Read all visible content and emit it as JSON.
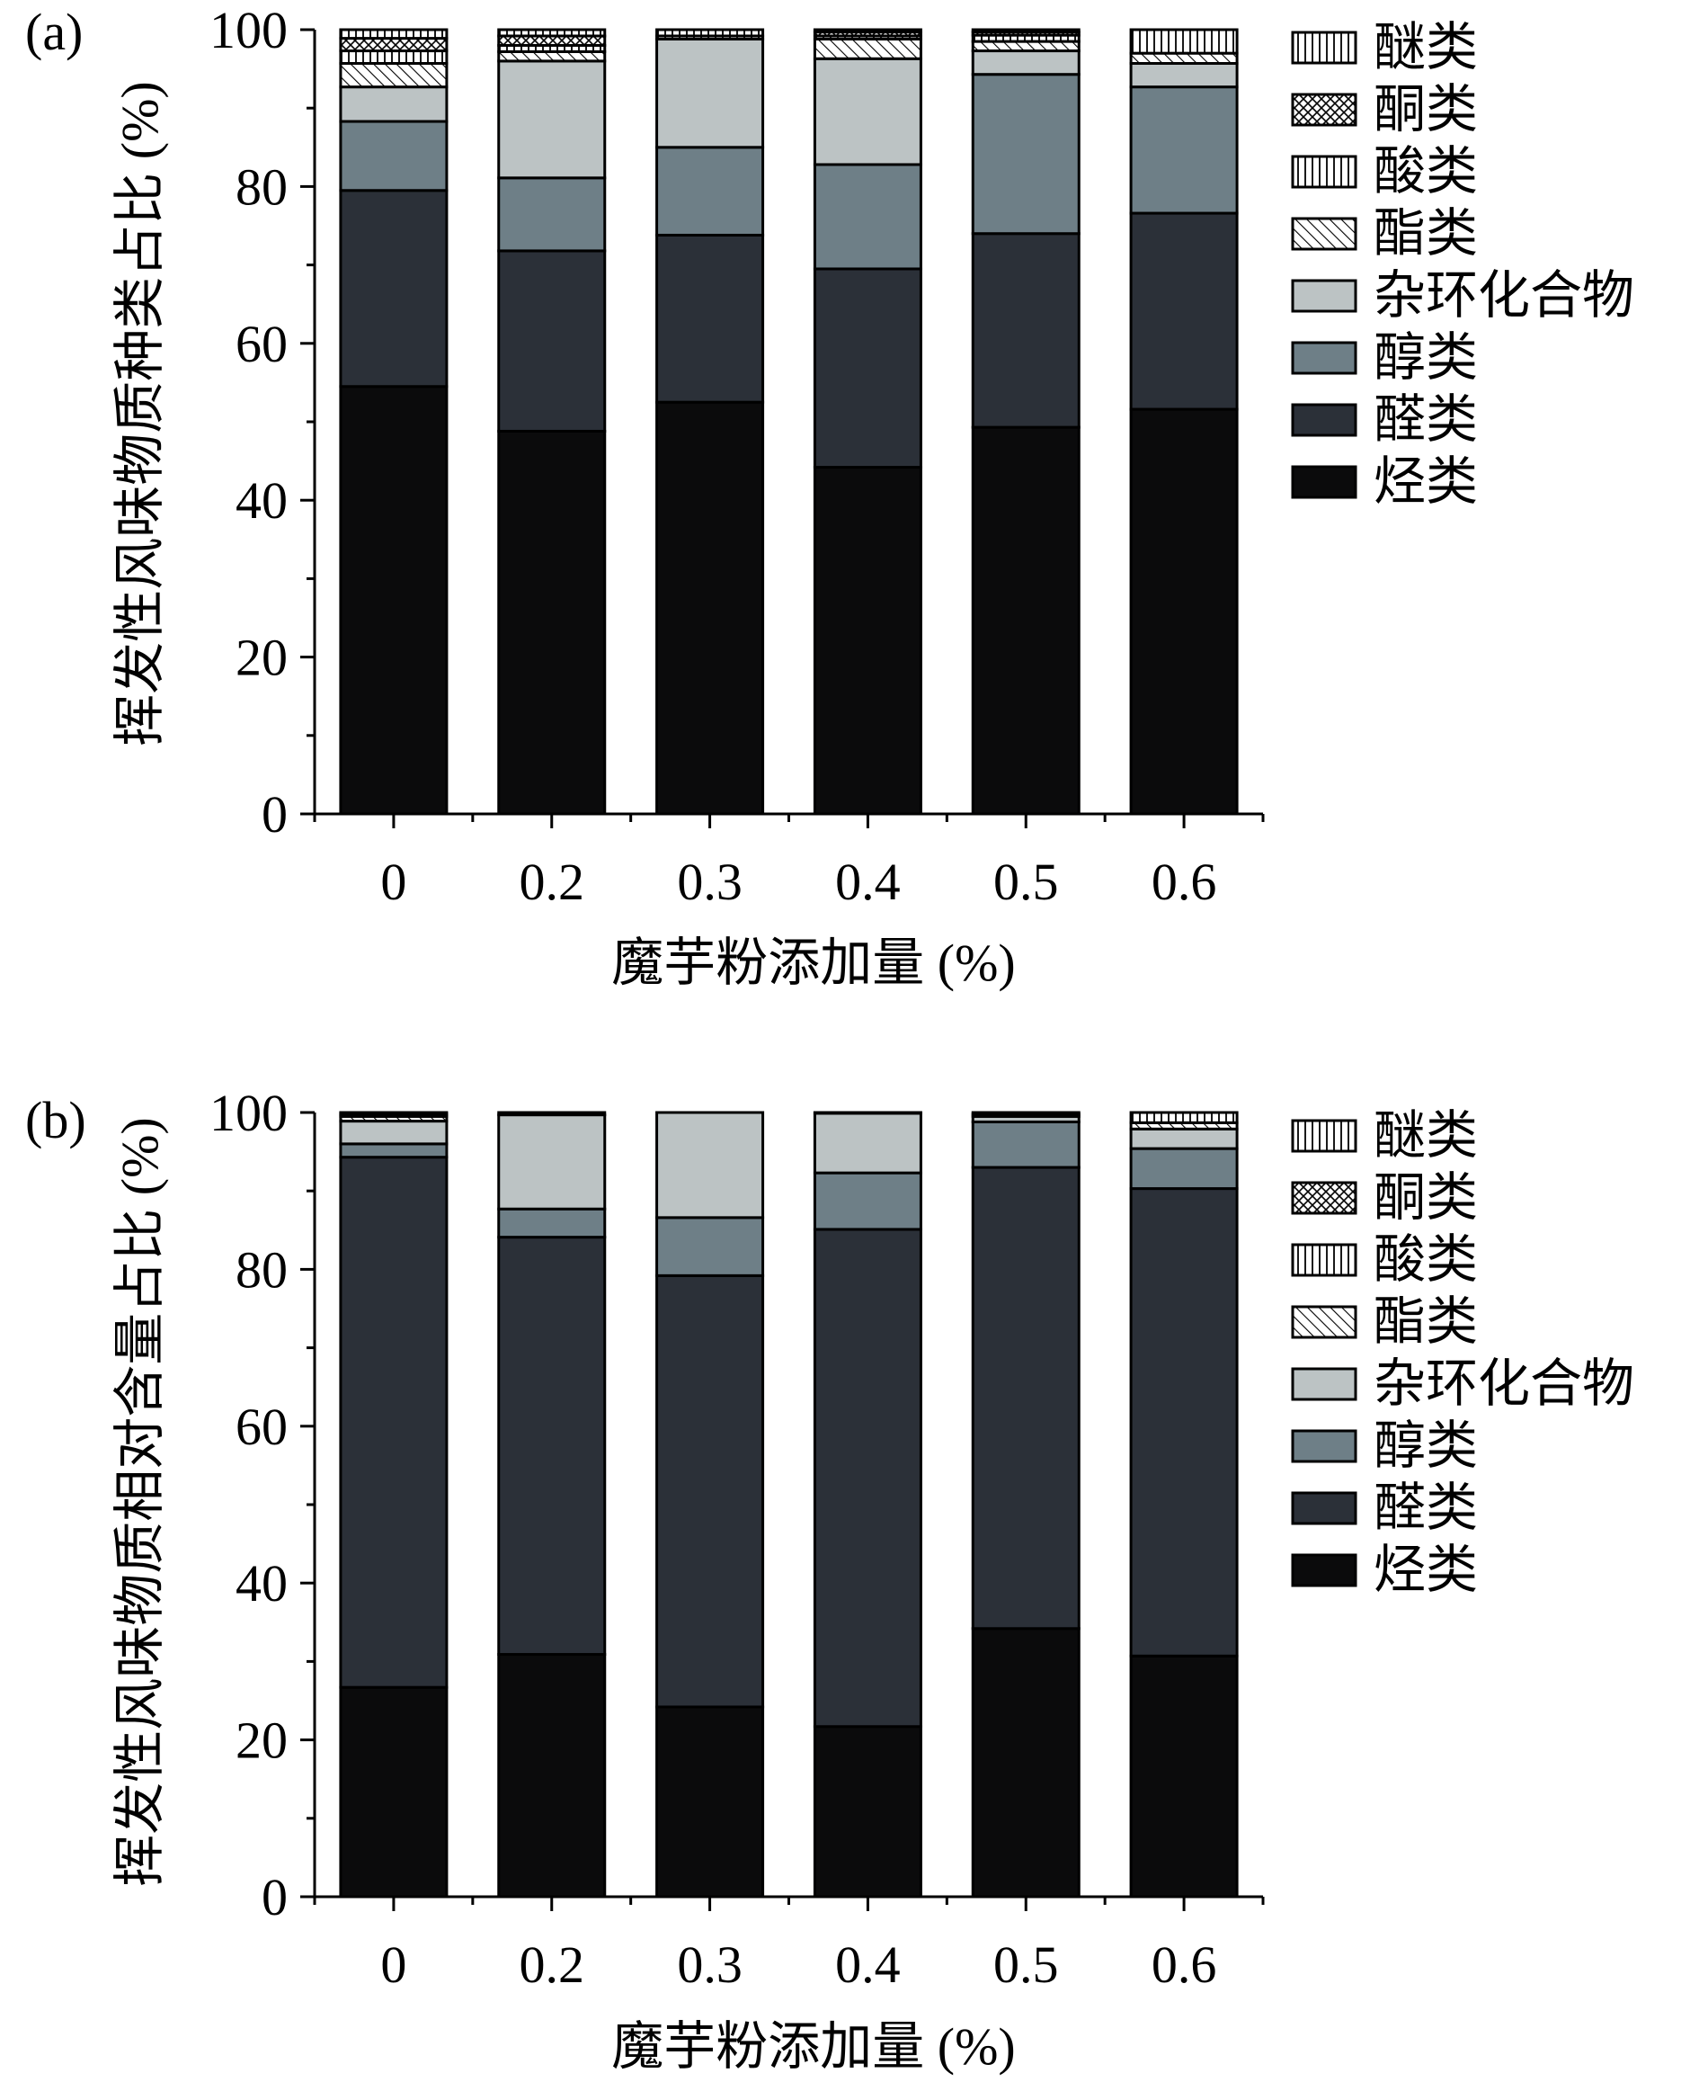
{
  "legend": {
    "items": [
      "醚类",
      "酮类",
      "酸类",
      "酯类",
      "杂环化合物",
      "醇类",
      "醛类",
      "烃类"
    ]
  },
  "categories_legend_order_note": "",
  "chart_data": [
    {
      "type": "bar",
      "stacked": true,
      "panel_label": "(a)",
      "xlabel": "魔芋粉添加量 (%)",
      "ylabel": "挥发性风味物质种类占比 (%)",
      "categories": [
        "0",
        "0.2",
        "0.3",
        "0.4",
        "0.5",
        "0.6"
      ],
      "ylim": [
        0,
        100
      ],
      "yticks": [
        0,
        20,
        40,
        60,
        80,
        100
      ],
      "grid": false,
      "legend_position": "right",
      "series": [
        {
          "name": "烃类",
          "values": [
            54.5,
            48.8,
            52.5,
            44.2,
            49.3,
            51.6
          ]
        },
        {
          "name": "醛类",
          "values": [
            25.0,
            23.0,
            21.3,
            25.3,
            24.7,
            25.0
          ]
        },
        {
          "name": "醇类",
          "values": [
            8.8,
            9.3,
            11.2,
            13.3,
            20.3,
            16.1
          ]
        },
        {
          "name": "杂环化合物",
          "values": [
            4.4,
            14.9,
            13.8,
            13.5,
            3.0,
            3.0
          ]
        },
        {
          "name": "酯类",
          "values": [
            3.0,
            1.2,
            0,
            2.5,
            1.2,
            1.3
          ]
        },
        {
          "name": "酸类",
          "values": [
            1.6,
            0.8,
            0.4,
            0.4,
            0.8,
            0
          ]
        },
        {
          "name": "酮类",
          "values": [
            1.6,
            1.2,
            0,
            0.5,
            0.4,
            0
          ]
        },
        {
          "name": "醚类",
          "values": [
            1.1,
            0.8,
            0.8,
            0.3,
            0.3,
            3.0
          ]
        }
      ]
    },
    {
      "type": "bar",
      "stacked": true,
      "panel_label": "(b)",
      "xlabel": "魔芋粉添加量 (%)",
      "ylabel": "挥发性风味物质相对含量占比 (%)",
      "categories": [
        "0",
        "0.2",
        "0.3",
        "0.4",
        "0.5",
        "0.6"
      ],
      "ylim": [
        0,
        100
      ],
      "yticks": [
        0,
        20,
        40,
        60,
        80,
        100
      ],
      "grid": false,
      "legend_position": "right",
      "series": [
        {
          "name": "烃类",
          "values": [
            26.7,
            30.9,
            24.2,
            21.7,
            34.2,
            30.7
          ]
        },
        {
          "name": "醛类",
          "values": [
            67.6,
            53.2,
            55.0,
            63.4,
            58.8,
            59.6
          ]
        },
        {
          "name": "醇类",
          "values": [
            1.7,
            3.6,
            7.4,
            7.2,
            5.8,
            5.1
          ]
        },
        {
          "name": "杂环化合物",
          "values": [
            2.9,
            12.0,
            13.4,
            7.6,
            0.7,
            2.5
          ]
        },
        {
          "name": "酯类",
          "values": [
            0.6,
            0,
            0,
            0,
            0.3,
            0.8
          ]
        },
        {
          "name": "酸类",
          "values": [
            0,
            0,
            0,
            0,
            0,
            0
          ]
        },
        {
          "name": "酮类",
          "values": [
            0.3,
            0,
            0,
            0,
            0,
            0
          ]
        },
        {
          "name": "醚类",
          "values": [
            0.2,
            0.3,
            0,
            0.1,
            0.2,
            1.3
          ]
        }
      ]
    }
  ],
  "series_styles": {
    "烃类": {
      "fill": "#0b0b0c",
      "pattern": "none"
    },
    "醛类": {
      "fill": "#2b3038",
      "pattern": "none"
    },
    "醇类": {
      "fill": "#6e7f87",
      "pattern": "none"
    },
    "杂环化合物": {
      "fill": "#bcc3c4",
      "pattern": "none"
    },
    "酯类": {
      "fill": "#ffffff",
      "pattern": "diagonal"
    },
    "酸类": {
      "fill": "#ffffff",
      "pattern": "vertical"
    },
    "酮类": {
      "fill": "#ffffff",
      "pattern": "crosshatch"
    },
    "醚类": {
      "fill": "#ffffff",
      "pattern": "vertical"
    }
  }
}
